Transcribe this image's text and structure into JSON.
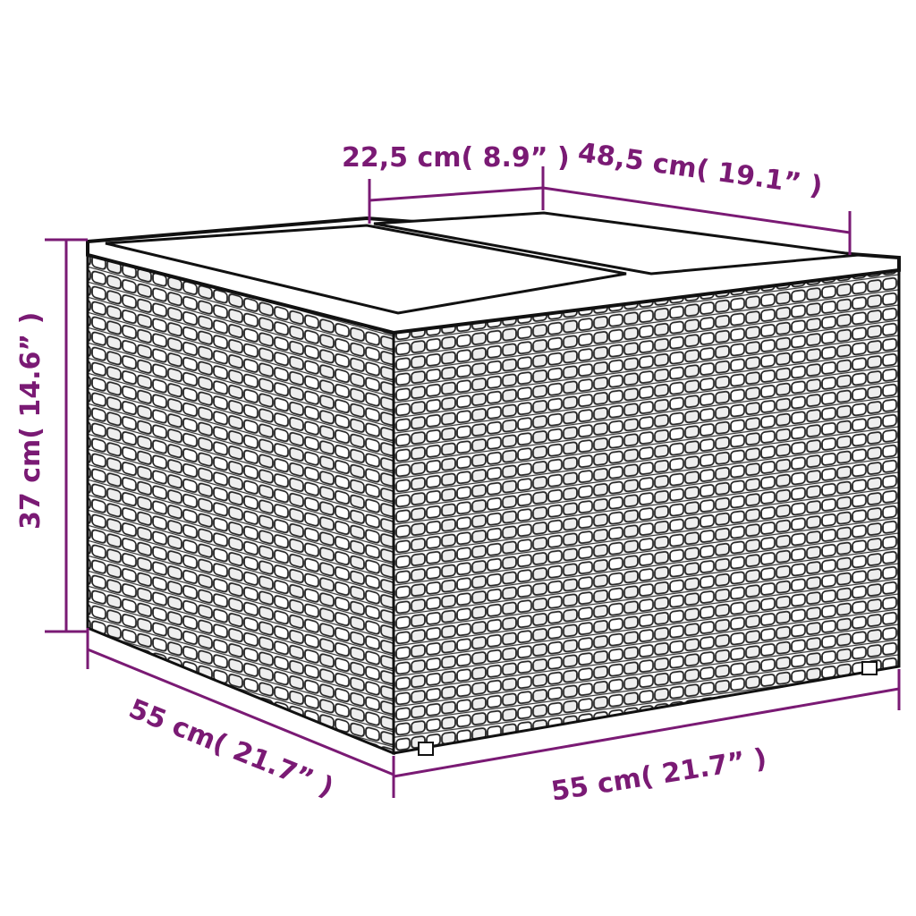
{
  "colors": {
    "dimension": "#7a1a74",
    "outline": "#111111",
    "background": "#ffffff"
  },
  "dimensions": {
    "top_section_width": "22,5 cm( 8.9” )",
    "top_depth": "48,5 cm( 19.1” )",
    "height": "37 cm( 14.6” )",
    "left_width": "55 cm( 21.7” )",
    "front_width": "55 cm( 21.7” )"
  }
}
